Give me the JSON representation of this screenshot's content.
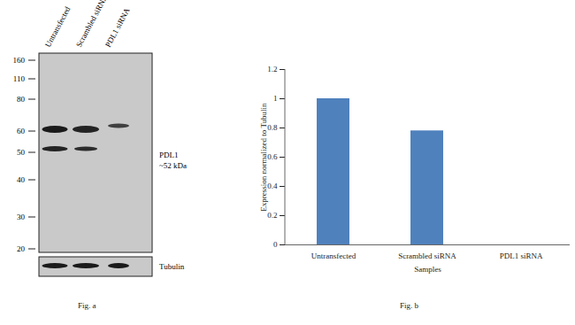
{
  "chart_data": {
    "type": "bar",
    "caption": "Fig. b",
    "categories": [
      "Untransfected",
      "Scrambled siRNA",
      "PDL1 siRNA"
    ],
    "values": [
      1,
      0.78,
      0
    ],
    "color": "#4f81bd",
    "xlabel": "Samples",
    "ylabel": "Expression normalized to Tubulin",
    "ylim": [
      0,
      1.2
    ],
    "yticks": [
      0,
      0.2,
      0.4,
      0.6,
      0.8,
      1,
      1.2
    ],
    "grid": false
  },
  "blot": {
    "caption": "Fig. a",
    "lanes": [
      "Untransfected",
      "Scrambled siRNA",
      "PDL1 siRNA"
    ],
    "markers": [
      160,
      110,
      80,
      60,
      50,
      40,
      30,
      20
    ],
    "band_label": [
      "PDL1",
      "~52 kDa"
    ],
    "loading_control": "Tubulin"
  }
}
